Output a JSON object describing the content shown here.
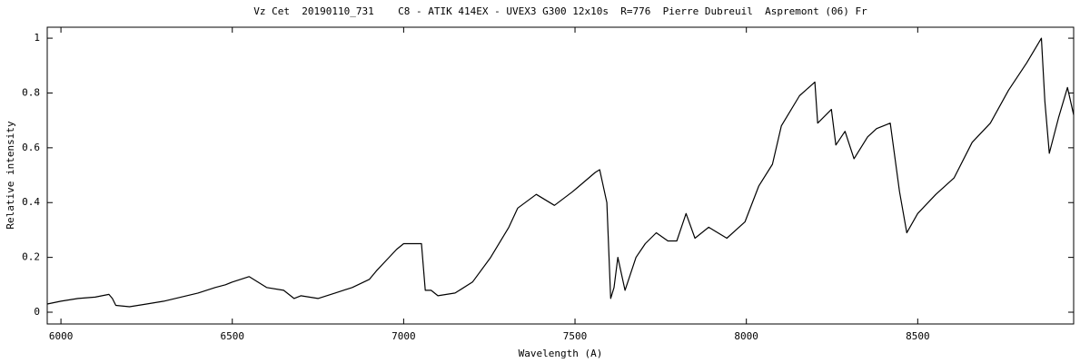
{
  "chart_data": {
    "type": "line",
    "title": "Vz Cet  20190110_731    C8 - ATIK 414EX - UVEX3 G300 12x10s  R=776  Pierre Dubreuil  Aspremont (06) Fr",
    "x_label": "Wavelength (A)",
    "y_label": "Relative intensity",
    "xlim": [
      5960,
      8955
    ],
    "ylim": [
      -0.043,
      1.04
    ],
    "xticks": [
      6000,
      6500,
      7000,
      7500,
      8000,
      8500
    ],
    "yticks": [
      0,
      0.2,
      0.4,
      0.6,
      0.8,
      1
    ],
    "series": [
      {
        "color": "#000000",
        "x": [
          5960,
          6000,
          6050,
          6100,
          6140,
          6150,
          6160,
          6200,
          6250,
          6300,
          6350,
          6400,
          6450,
          6480,
          6500,
          6549,
          6600,
          6650,
          6680,
          6700,
          6750,
          6800,
          6850,
          6900,
          6920,
          6950,
          6980,
          7000,
          7030,
          7052,
          7063,
          7080,
          7100,
          7150,
          7201,
          7254,
          7307,
          7333,
          7387,
          7440,
          7493,
          7559,
          7572,
          7593,
          7604,
          7614,
          7625,
          7646,
          7678,
          7705,
          7737,
          7771,
          7797,
          7824,
          7850,
          7890,
          7943,
          7996,
          8036,
          8076,
          8102,
          8155,
          8200,
          8208,
          8248,
          8261,
          8288,
          8314,
          8354,
          8380,
          8420,
          8447,
          8468,
          8500,
          8553,
          8606,
          8659,
          8712,
          8765,
          8818,
          8861,
          8871,
          8884,
          8911,
          8937,
          8955
        ],
        "values": [
          0.03,
          0.04,
          0.05,
          0.055,
          0.065,
          0.05,
          0.025,
          0.02,
          0.03,
          0.04,
          0.055,
          0.07,
          0.09,
          0.1,
          0.11,
          0.13,
          0.09,
          0.08,
          0.05,
          0.06,
          0.05,
          0.07,
          0.09,
          0.12,
          0.15,
          0.19,
          0.23,
          0.25,
          0.25,
          0.25,
          0.08,
          0.08,
          0.06,
          0.07,
          0.11,
          0.2,
          0.31,
          0.38,
          0.43,
          0.39,
          0.44,
          0.51,
          0.52,
          0.4,
          0.05,
          0.09,
          0.2,
          0.08,
          0.2,
          0.25,
          0.29,
          0.26,
          0.26,
          0.36,
          0.27,
          0.31,
          0.27,
          0.33,
          0.46,
          0.54,
          0.68,
          0.79,
          0.84,
          0.69,
          0.74,
          0.61,
          0.66,
          0.56,
          0.64,
          0.67,
          0.69,
          0.44,
          0.29,
          0.36,
          0.43,
          0.49,
          0.62,
          0.69,
          0.81,
          0.91,
          1.0,
          0.77,
          0.58,
          0.71,
          0.82,
          0.72
        ]
      }
    ]
  }
}
